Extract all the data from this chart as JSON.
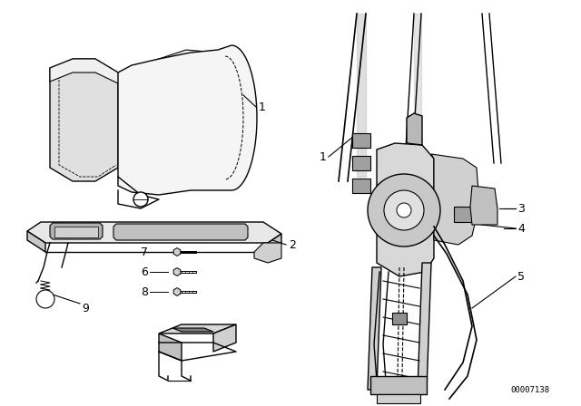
{
  "background_color": "#ffffff",
  "line_color": "#000000",
  "watermark": "00007138",
  "figsize": [
    6.4,
    4.48
  ],
  "dpi": 100
}
